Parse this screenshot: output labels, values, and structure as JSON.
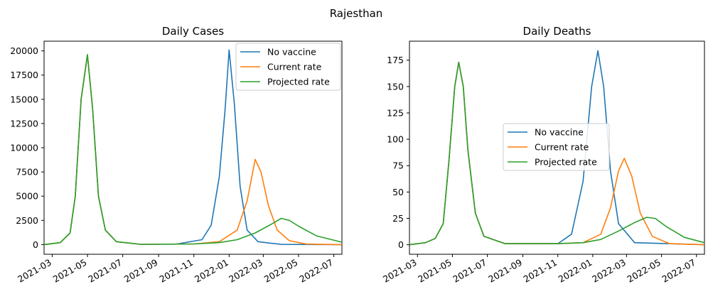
{
  "figure": {
    "suptitle": "Rajesthan"
  },
  "colors": {
    "No vaccine": "#1f77b4",
    "Current rate": "#ff7f0e",
    "Projected rate": "#2ca02c"
  },
  "chart_data": [
    {
      "type": "line",
      "title": "Daily Cases",
      "xlabel": "",
      "ylabel": "",
      "x_range": [
        "2021-02-15",
        "2022-07-15"
      ],
      "ylim": [
        -1000,
        21000
      ],
      "x_ticks": [
        "2021-03",
        "2021-05",
        "2021-07",
        "2021-09",
        "2021-11",
        "2022-01",
        "2022-03",
        "2022-05",
        "2022-07"
      ],
      "y_ticks": [
        0,
        2500,
        5000,
        7500,
        10000,
        12500,
        15000,
        17500,
        20000
      ],
      "legend_position": "upper right",
      "grid": false,
      "series": [
        {
          "name": "No vaccine",
          "points": [
            [
              "2021-02-15",
              0
            ],
            [
              "2021-03-15",
              200
            ],
            [
              "2021-04-01",
              1200
            ],
            [
              "2021-04-10",
              5000
            ],
            [
              "2021-04-20",
              15000
            ],
            [
              "2021-05-01",
              19600
            ],
            [
              "2021-05-10",
              14000
            ],
            [
              "2021-05-20",
              5000
            ],
            [
              "2021-06-01",
              1500
            ],
            [
              "2021-06-20",
              300
            ],
            [
              "2021-08-01",
              30
            ],
            [
              "2021-10-01",
              40
            ],
            [
              "2021-11-15",
              500
            ],
            [
              "2021-12-01",
              2000
            ],
            [
              "2021-12-15",
              7000
            ],
            [
              "2021-12-25",
              14000
            ],
            [
              "2022-01-01",
              20100
            ],
            [
              "2022-01-10",
              14500
            ],
            [
              "2022-01-20",
              6000
            ],
            [
              "2022-02-01",
              1500
            ],
            [
              "2022-02-20",
              300
            ],
            [
              "2022-04-01",
              20
            ],
            [
              "2022-07-15",
              0
            ]
          ]
        },
        {
          "name": "Current rate",
          "points": [
            [
              "2021-02-15",
              0
            ],
            [
              "2021-03-15",
              200
            ],
            [
              "2021-04-01",
              1200
            ],
            [
              "2021-04-10",
              5000
            ],
            [
              "2021-04-20",
              15000
            ],
            [
              "2021-05-01",
              19600
            ],
            [
              "2021-05-10",
              14000
            ],
            [
              "2021-05-20",
              5000
            ],
            [
              "2021-06-01",
              1500
            ],
            [
              "2021-06-20",
              300
            ],
            [
              "2021-08-01",
              30
            ],
            [
              "2021-11-01",
              60
            ],
            [
              "2021-12-15",
              300
            ],
            [
              "2022-01-15",
              1500
            ],
            [
              "2022-02-01",
              4500
            ],
            [
              "2022-02-15",
              8800
            ],
            [
              "2022-02-25",
              7500
            ],
            [
              "2022-03-10",
              4000
            ],
            [
              "2022-03-25",
              1500
            ],
            [
              "2022-04-15",
              400
            ],
            [
              "2022-05-15",
              50
            ],
            [
              "2022-07-15",
              0
            ]
          ]
        },
        {
          "name": "Projected rate",
          "points": [
            [
              "2021-02-15",
              0
            ],
            [
              "2021-03-15",
              200
            ],
            [
              "2021-04-01",
              1200
            ],
            [
              "2021-04-10",
              5000
            ],
            [
              "2021-04-20",
              15000
            ],
            [
              "2021-05-01",
              19600
            ],
            [
              "2021-05-10",
              14000
            ],
            [
              "2021-05-20",
              5000
            ],
            [
              "2021-06-01",
              1500
            ],
            [
              "2021-06-20",
              300
            ],
            [
              "2021-08-01",
              30
            ],
            [
              "2021-11-01",
              60
            ],
            [
              "2021-12-15",
              200
            ],
            [
              "2022-01-15",
              500
            ],
            [
              "2022-02-15",
              1200
            ],
            [
              "2022-03-15",
              2100
            ],
            [
              "2022-04-01",
              2700
            ],
            [
              "2022-04-15",
              2500
            ],
            [
              "2022-05-01",
              1900
            ],
            [
              "2022-06-01",
              900
            ],
            [
              "2022-07-15",
              250
            ]
          ]
        }
      ]
    },
    {
      "type": "line",
      "title": "Daily Deaths",
      "xlabel": "",
      "ylabel": "",
      "x_range": [
        "2021-02-15",
        "2022-07-15"
      ],
      "ylim": [
        -9,
        193
      ],
      "x_ticks": [
        "2021-03",
        "2021-05",
        "2021-07",
        "2021-09",
        "2021-11",
        "2022-01",
        "2022-03",
        "2022-05",
        "2022-07"
      ],
      "y_ticks": [
        0,
        25,
        50,
        75,
        100,
        125,
        150,
        175
      ],
      "legend_position": "center",
      "grid": false,
      "series": [
        {
          "name": "No vaccine",
          "points": [
            [
              "2021-02-15",
              0
            ],
            [
              "2021-03-15",
              2
            ],
            [
              "2021-04-01",
              6
            ],
            [
              "2021-04-15",
              20
            ],
            [
              "2021-04-25",
              80
            ],
            [
              "2021-05-05",
              150
            ],
            [
              "2021-05-12",
              173
            ],
            [
              "2021-05-20",
              150
            ],
            [
              "2021-05-28",
              90
            ],
            [
              "2021-06-10",
              30
            ],
            [
              "2021-06-25",
              8
            ],
            [
              "2021-08-01",
              1
            ],
            [
              "2021-11-01",
              1
            ],
            [
              "2021-11-25",
              10
            ],
            [
              "2021-12-15",
              60
            ],
            [
              "2021-12-30",
              150
            ],
            [
              "2022-01-10",
              184
            ],
            [
              "2022-01-20",
              150
            ],
            [
              "2022-02-01",
              70
            ],
            [
              "2022-02-15",
              20
            ],
            [
              "2022-03-15",
              2
            ],
            [
              "2022-07-15",
              0
            ]
          ]
        },
        {
          "name": "Current rate",
          "points": [
            [
              "2021-02-15",
              0
            ],
            [
              "2021-03-15",
              2
            ],
            [
              "2021-04-01",
              6
            ],
            [
              "2021-04-15",
              20
            ],
            [
              "2021-04-25",
              80
            ],
            [
              "2021-05-05",
              150
            ],
            [
              "2021-05-12",
              173
            ],
            [
              "2021-05-20",
              150
            ],
            [
              "2021-05-28",
              90
            ],
            [
              "2021-06-10",
              30
            ],
            [
              "2021-06-25",
              8
            ],
            [
              "2021-08-01",
              1
            ],
            [
              "2021-11-01",
              1
            ],
            [
              "2021-12-15",
              2
            ],
            [
              "2022-01-15",
              10
            ],
            [
              "2022-02-01",
              35
            ],
            [
              "2022-02-15",
              70
            ],
            [
              "2022-02-25",
              82
            ],
            [
              "2022-03-10",
              65
            ],
            [
              "2022-03-25",
              30
            ],
            [
              "2022-04-15",
              8
            ],
            [
              "2022-05-15",
              1
            ],
            [
              "2022-07-15",
              0
            ]
          ]
        },
        {
          "name": "Projected rate",
          "points": [
            [
              "2021-02-15",
              0
            ],
            [
              "2021-03-15",
              2
            ],
            [
              "2021-04-01",
              6
            ],
            [
              "2021-04-15",
              20
            ],
            [
              "2021-04-25",
              80
            ],
            [
              "2021-05-05",
              150
            ],
            [
              "2021-05-12",
              173
            ],
            [
              "2021-05-20",
              150
            ],
            [
              "2021-05-28",
              90
            ],
            [
              "2021-06-10",
              30
            ],
            [
              "2021-06-25",
              8
            ],
            [
              "2021-08-01",
              1
            ],
            [
              "2021-11-01",
              1
            ],
            [
              "2021-12-15",
              2
            ],
            [
              "2022-01-15",
              5
            ],
            [
              "2022-02-15",
              13
            ],
            [
              "2022-03-15",
              21
            ],
            [
              "2022-04-05",
              26
            ],
            [
              "2022-04-20",
              25
            ],
            [
              "2022-05-10",
              17
            ],
            [
              "2022-06-10",
              7
            ],
            [
              "2022-07-15",
              2
            ]
          ]
        }
      ]
    }
  ]
}
